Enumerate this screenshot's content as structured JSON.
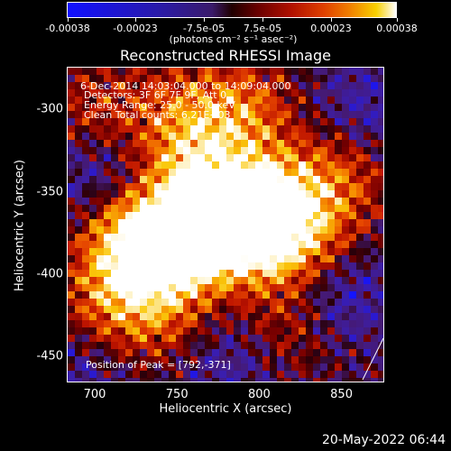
{
  "colorbar": {
    "ticks": [
      "-0.00038",
      "-0.00023",
      "-7.5e-05",
      "7.5e-05",
      "0.00023",
      "0.00038"
    ],
    "units_text": "(photons cm⁻² s⁻¹ asec⁻²)",
    "colors": [
      "#1010ff",
      "#2a1aa8",
      "#3a1a6a",
      "#200000",
      "#6a0000",
      "#b01000",
      "#e04000",
      "#f08000",
      "#f8d000",
      "#ffffff"
    ]
  },
  "title": "Reconstructed RHESSI Image",
  "overlay": {
    "line1": "6-Dec-2014 14:03:04.000 to 14:09:04.000",
    "line2": "Detectors: 3F 6F 7F 9F, Att 0",
    "line3": "Energy Range: 25.0 - 50.0 keV",
    "line4": "Clean     Total counts: 6.21E+03",
    "peak": "Position of Peak = [792,-371]"
  },
  "axes": {
    "xlabel": "Heliocentric X (arcsec)",
    "ylabel": "Heliocentric Y (arcsec)",
    "xticks": [
      "700",
      "750",
      "800",
      "850"
    ],
    "yticks": [
      "-300",
      "-350",
      "-400",
      "-450"
    ],
    "xrange": [
      683,
      876
    ],
    "yrange": [
      -466,
      -274
    ]
  },
  "timestamp": "20-May-2022 06:44",
  "chart_data": {
    "type": "heatmap",
    "title": "Reconstructed RHESSI Image",
    "xlabel": "Heliocentric X (arcsec)",
    "ylabel": "Heliocentric Y (arcsec)",
    "xlim": [
      683,
      876
    ],
    "ylim": [
      -466,
      -274
    ],
    "colorbar_range": [
      -0.00038,
      0.00038
    ],
    "peak": [
      792,
      -371
    ],
    "hotspots": [
      {
        "x": 792,
        "y": -371,
        "intensity": 1.0
      },
      {
        "x": 765,
        "y": -372,
        "intensity": 0.85
      },
      {
        "x": 740,
        "y": -385,
        "intensity": 0.8
      },
      {
        "x": 720,
        "y": -380,
        "intensity": 0.7
      },
      {
        "x": 810,
        "y": -355,
        "intensity": 0.7
      },
      {
        "x": 760,
        "y": -335,
        "intensity": 0.6
      },
      {
        "x": 790,
        "y": -300,
        "intensity": 0.55
      },
      {
        "x": 830,
        "y": -385,
        "intensity": 0.55
      },
      {
        "x": 850,
        "y": -340,
        "intensity": 0.45
      },
      {
        "x": 705,
        "y": -420,
        "intensity": 0.45
      },
      {
        "x": 740,
        "y": -425,
        "intensity": 0.4
      },
      {
        "x": 820,
        "y": -430,
        "intensity": 0.35
      },
      {
        "x": 700,
        "y": -300,
        "intensity": 0.35
      },
      {
        "x": 750,
        "y": -300,
        "intensity": 0.4
      }
    ],
    "coldspots": [
      {
        "x": 845,
        "y": -410,
        "intensity": -0.5
      },
      {
        "x": 700,
        "y": -340,
        "intensity": -0.3
      },
      {
        "x": 865,
        "y": -300,
        "intensity": -0.3
      },
      {
        "x": 690,
        "y": -455,
        "intensity": -0.25
      },
      {
        "x": 780,
        "y": -455,
        "intensity": -0.25
      }
    ]
  }
}
